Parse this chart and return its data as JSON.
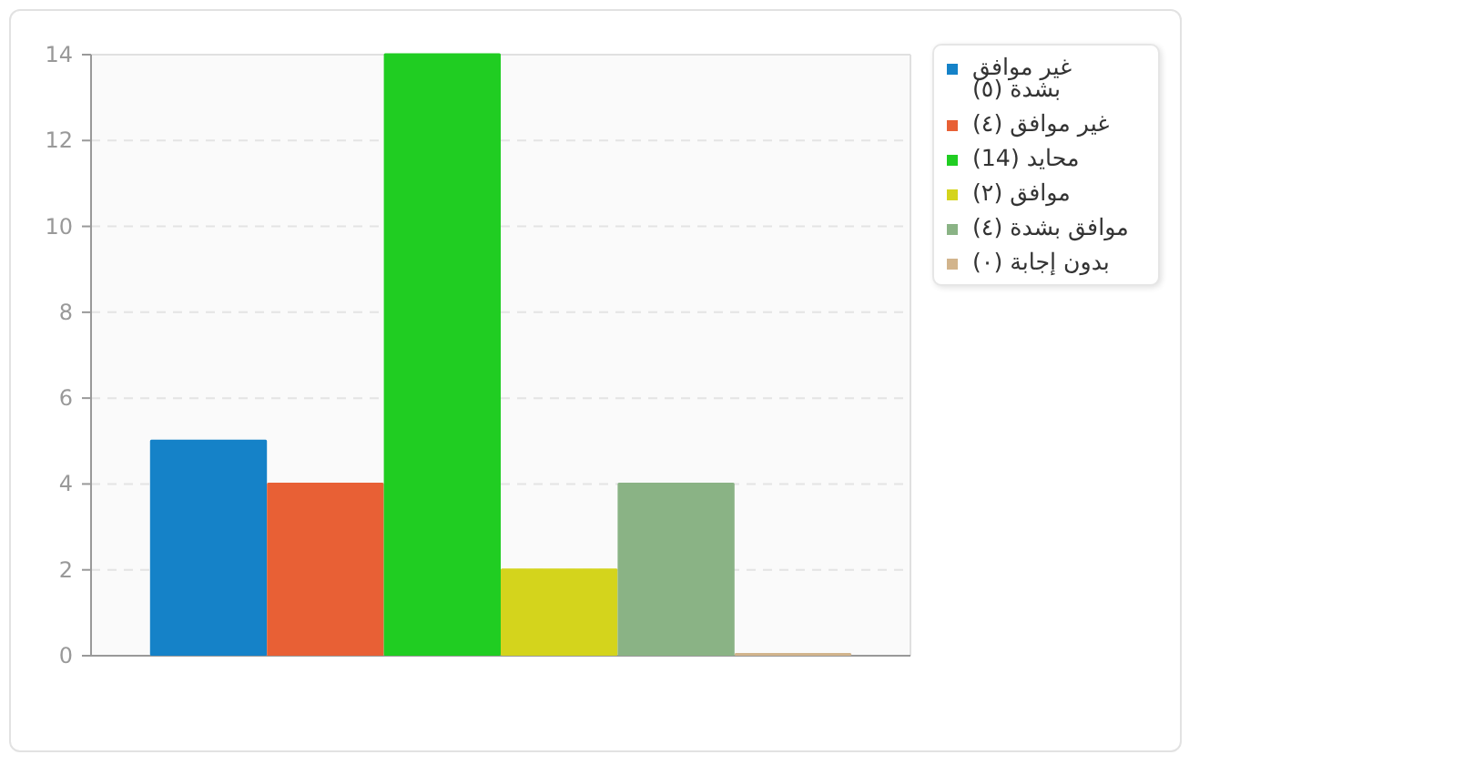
{
  "chart_data": {
    "type": "bar",
    "categories": [
      null
    ],
    "series": [
      {
        "name": "غير موافق بشدة (٥)",
        "color": "#1582c8",
        "values": [
          5
        ]
      },
      {
        "name": "غير موافق (٤)",
        "color": "#e86035",
        "values": [
          4
        ]
      },
      {
        "name": "محايد (14)",
        "color": "#20cd22",
        "values": [
          14
        ]
      },
      {
        "name": "موافق (٢)",
        "color": "#d4d41c",
        "values": [
          2
        ]
      },
      {
        "name": "موافق بشدة (٤)",
        "color": "#8ab385",
        "values": [
          4
        ]
      },
      {
        "name": "بدون إجابة (٠)",
        "color": "#d2b48c",
        "values": [
          0
        ]
      }
    ],
    "ylim": [
      0,
      14
    ],
    "yticks": [
      0,
      2,
      4,
      6,
      8,
      10,
      12,
      14
    ],
    "grid": "y",
    "legend": "right"
  }
}
